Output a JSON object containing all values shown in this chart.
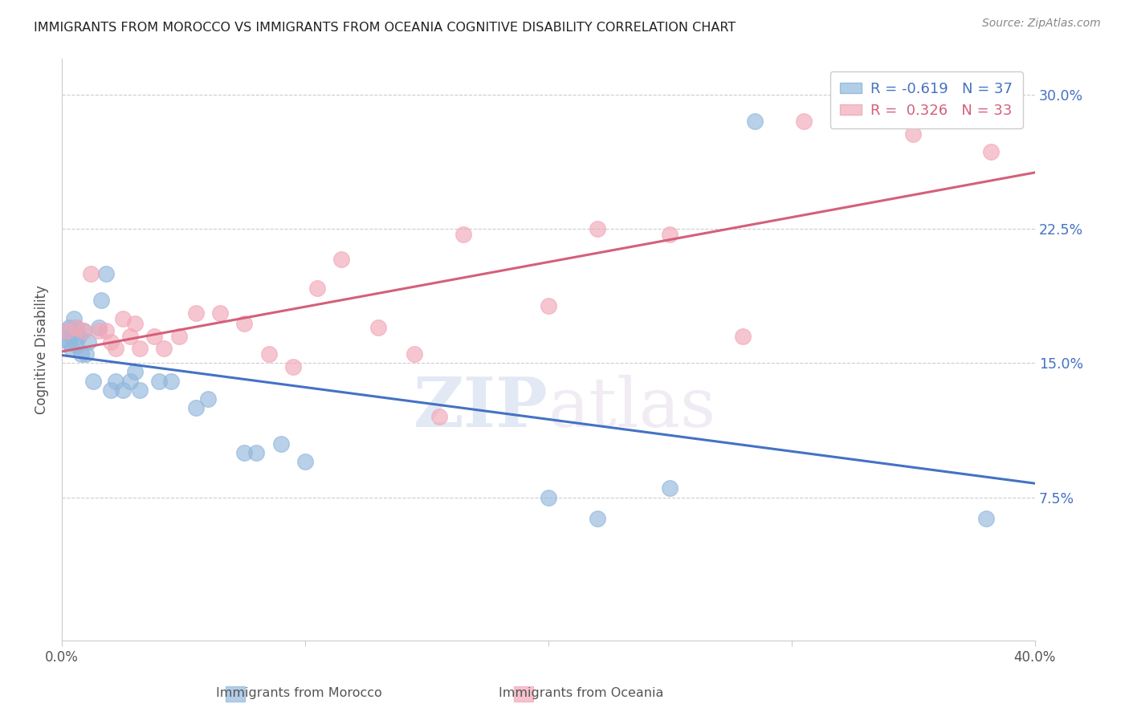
{
  "title": "IMMIGRANTS FROM MOROCCO VS IMMIGRANTS FROM OCEANIA COGNITIVE DISABILITY CORRELATION CHART",
  "source": "Source: ZipAtlas.com",
  "ylabel": "Cognitive Disability",
  "xlim": [
    0.0,
    0.4
  ],
  "ylim": [
    -0.005,
    0.32
  ],
  "ytick_values": [
    0.075,
    0.15,
    0.225,
    0.3
  ],
  "ytick_labels": [
    "7.5%",
    "15.0%",
    "22.5%",
    "30.0%"
  ],
  "xtick_values": [
    0.0,
    0.1,
    0.2,
    0.3,
    0.4
  ],
  "xtick_labels": [
    "0.0%",
    "",
    "",
    "",
    "40.0%"
  ],
  "r_blue": "-0.619",
  "n_blue": "37",
  "r_pink": "0.326",
  "n_pink": "33",
  "blue_dot_color": "#92b8dd",
  "pink_dot_color": "#f2a8b8",
  "blue_line_color": "#4472c4",
  "pink_line_color": "#d4607a",
  "watermark_zip": "ZIP",
  "watermark_atlas": "atlas",
  "legend_blue_text_color": "#4472c4",
  "legend_pink_text_color": "#d4607a",
  "morocco_x": [
    0.001,
    0.002,
    0.003,
    0.003,
    0.004,
    0.004,
    0.005,
    0.006,
    0.006,
    0.007,
    0.008,
    0.009,
    0.01,
    0.011,
    0.013,
    0.015,
    0.016,
    0.018,
    0.02,
    0.022,
    0.025,
    0.028,
    0.03,
    0.032,
    0.04,
    0.045,
    0.055,
    0.06,
    0.075,
    0.08,
    0.09,
    0.1,
    0.2,
    0.22,
    0.25,
    0.285,
    0.38
  ],
  "morocco_y": [
    0.163,
    0.168,
    0.162,
    0.17,
    0.165,
    0.158,
    0.175,
    0.17,
    0.16,
    0.165,
    0.155,
    0.168,
    0.155,
    0.162,
    0.14,
    0.17,
    0.185,
    0.2,
    0.135,
    0.14,
    0.135,
    0.14,
    0.145,
    0.135,
    0.14,
    0.14,
    0.125,
    0.13,
    0.1,
    0.1,
    0.105,
    0.095,
    0.075,
    0.063,
    0.08,
    0.285,
    0.063
  ],
  "oceania_x": [
    0.002,
    0.006,
    0.009,
    0.012,
    0.015,
    0.018,
    0.02,
    0.022,
    0.025,
    0.028,
    0.03,
    0.032,
    0.038,
    0.042,
    0.048,
    0.055,
    0.065,
    0.075,
    0.085,
    0.095,
    0.105,
    0.115,
    0.13,
    0.145,
    0.155,
    0.165,
    0.2,
    0.22,
    0.25,
    0.28,
    0.305,
    0.35,
    0.382
  ],
  "oceania_y": [
    0.168,
    0.17,
    0.168,
    0.2,
    0.168,
    0.168,
    0.162,
    0.158,
    0.175,
    0.165,
    0.172,
    0.158,
    0.165,
    0.158,
    0.165,
    0.178,
    0.178,
    0.172,
    0.155,
    0.148,
    0.192,
    0.208,
    0.17,
    0.155,
    0.12,
    0.222,
    0.182,
    0.225,
    0.222,
    0.165,
    0.285,
    0.278,
    0.268
  ]
}
